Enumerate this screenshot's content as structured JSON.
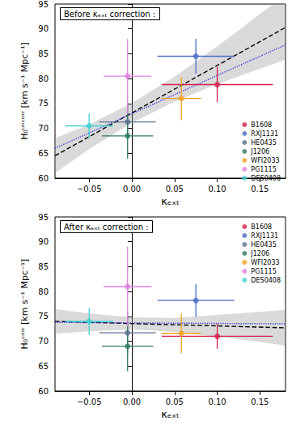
{
  "chart_data": [
    {
      "type": "scatter",
      "annotation": "Before κₑₓₜ correction :",
      "x_label": "κₑₓₜ",
      "y_label": "H₀ᵘⁿᶜᵒʳʳ [km s⁻¹ Mpc⁻¹]",
      "xlim": [
        -0.09,
        0.18
      ],
      "xticks": [
        {
          "value": -0.05,
          "label": "−0.05"
        },
        {
          "value": 0,
          "label": "0.00"
        },
        0.05,
        {
          "value": 0.1,
          "label": "0.10"
        },
        0.15
      ],
      "ylim": [
        60,
        95
      ],
      "yticks": [
        60,
        65,
        70,
        75,
        80,
        85,
        90,
        95
      ],
      "grid": false,
      "legend": "lower right",
      "series": [
        {
          "name": "B1608",
          "color": "#d6204a",
          "x": [
            0.1
          ],
          "values": [
            78.8
          ],
          "xerr": [
            0.065
          ],
          "yerr": [
            3.5
          ]
        },
        {
          "name": "RXJ1131",
          "color": "#4a6fc9",
          "x": [
            0.075
          ],
          "values": [
            84.5
          ],
          "xerr": [
            0.045
          ],
          "yerr": [
            3.5
          ]
        },
        {
          "name": "HE0435",
          "color": "#5a7090",
          "x": [
            -0.005
          ],
          "values": [
            71.3
          ],
          "xerr": [
            0.033
          ],
          "yerr": [
            3.5
          ]
        },
        {
          "name": "J1206",
          "color": "#2e7d5b",
          "x": [
            -0.005
          ],
          "values": [
            68.5
          ],
          "xerr": [
            0.03
          ],
          "yerr": [
            4.6
          ]
        },
        {
          "name": "WFI2033",
          "color": "#f0a020",
          "x": [
            0.058
          ],
          "values": [
            76.0
          ],
          "xerr": [
            0.023
          ],
          "yerr": [
            4.3
          ]
        },
        {
          "name": "PG1115",
          "color": "#e080e0",
          "x": [
            -0.005
          ],
          "values": [
            80.5
          ],
          "xerr": [
            0.028
          ],
          "yerr": [
            7.5
          ]
        },
        {
          "name": "DES0408",
          "color": "#40d0d0",
          "x": [
            -0.05
          ],
          "values": [
            70.5
          ],
          "xerr": [
            0.028
          ],
          "yerr": [
            2.5
          ]
        }
      ],
      "fit_lines": [
        {
          "x": [
            -0.09,
            0.18
          ],
          "values": [
            64.5,
            90.3
          ],
          "color": "#000000",
          "line_style": "dashed"
        },
        {
          "x": [
            -0.09,
            0.18
          ],
          "values": [
            66.0,
            86.8
          ],
          "color": "#4040e0",
          "line_style": "dotted"
        }
      ],
      "band": {
        "x": [
          -0.09,
          -0.05,
          0,
          0.05,
          0.1,
          0.15,
          0.18
        ],
        "lower": [
          61.0,
          65.8,
          71.1,
          75.4,
          78.9,
          82.0,
          83.8
        ],
        "upper": [
          68.0,
          70.8,
          75.1,
          80.4,
          86.5,
          93.0,
          96.8
        ]
      }
    },
    {
      "type": "scatter",
      "annotation": "After κₑₓₜ correction :",
      "x_label": "κₑₓₜ",
      "y_label": "H₀ᶜᵒʳʳ [km s⁻¹ Mpc⁻¹]",
      "xlim": [
        -0.09,
        0.18
      ],
      "xticks": [
        {
          "value": -0.05,
          "label": "−0.05"
        },
        {
          "value": 0,
          "label": "0.00"
        },
        0.05,
        {
          "value": 0.1,
          "label": "0.10"
        },
        0.15
      ],
      "ylim": [
        60,
        95
      ],
      "yticks": [
        60,
        65,
        70,
        75,
        80,
        85,
        90,
        95
      ],
      "grid": false,
      "legend": "upper right",
      "series": [
        {
          "name": "B1608",
          "color": "#d6204a",
          "x": [
            0.1
          ],
          "values": [
            71.0
          ],
          "xerr": [
            0.065
          ],
          "yerr": [
            2.5
          ]
        },
        {
          "name": "RXJ1131",
          "color": "#4a6fc9",
          "x": [
            0.075
          ],
          "values": [
            78.2
          ],
          "xerr": [
            0.045
          ],
          "yerr": [
            3.3
          ]
        },
        {
          "name": "HE0435",
          "color": "#5a7090",
          "x": [
            -0.005
          ],
          "values": [
            71.7
          ],
          "xerr": [
            0.033
          ],
          "yerr": [
            4.2
          ]
        },
        {
          "name": "J1206",
          "color": "#2e7d5b",
          "x": [
            -0.005
          ],
          "values": [
            69.0
          ],
          "xerr": [
            0.03
          ],
          "yerr": [
            5.0
          ]
        },
        {
          "name": "WFI2033",
          "color": "#f0a020",
          "x": [
            0.058
          ],
          "values": [
            71.6
          ],
          "xerr": [
            0.023
          ],
          "yerr": [
            4.0
          ]
        },
        {
          "name": "PG1115",
          "color": "#e080e0",
          "x": [
            -0.005
          ],
          "values": [
            81.0
          ],
          "xerr": [
            0.028
          ],
          "yerr": [
            8.0
          ]
        },
        {
          "name": "DES0408",
          "color": "#40d0d0",
          "x": [
            -0.05
          ],
          "values": [
            74.0
          ],
          "xerr": [
            0.028
          ],
          "yerr": [
            2.7
          ]
        }
      ],
      "fit_lines": [
        {
          "x": [
            -0.09,
            0.18
          ],
          "values": [
            74.0,
            72.7
          ],
          "color": "#000000",
          "line_style": "dashed"
        },
        {
          "x": [
            -0.09,
            0.18
          ],
          "values": [
            73.8,
            73.5
          ],
          "color": "#4040e0",
          "line_style": "dotted"
        }
      ],
      "band": {
        "x": [
          -0.09,
          -0.05,
          0,
          0.05,
          0.1,
          0.15,
          0.18
        ],
        "lower": [
          71.5,
          72.0,
          72.4,
          71.9,
          70.9,
          69.9,
          69.1
        ],
        "upper": [
          76.5,
          75.6,
          74.8,
          74.7,
          75.3,
          75.9,
          76.3
        ]
      }
    }
  ]
}
